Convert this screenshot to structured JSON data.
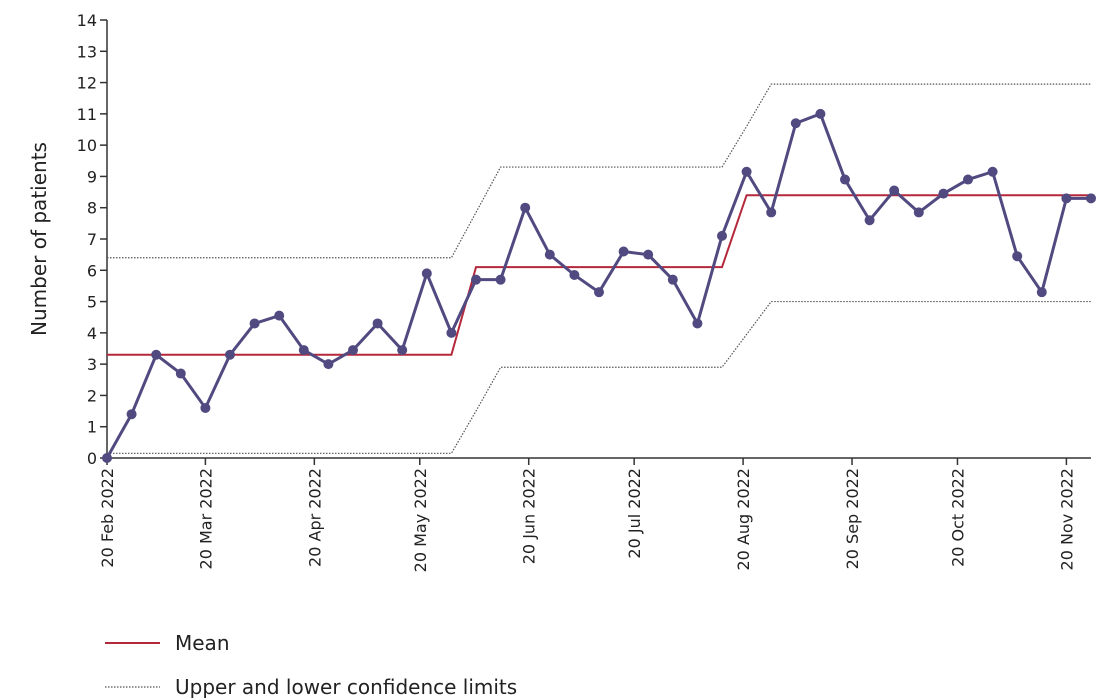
{
  "chart_data": {
    "type": "line",
    "y_label": "Number of patients",
    "x": [
      "2022-02-20",
      "2022-02-27",
      "2022-03-06",
      "2022-03-13",
      "2022-03-20",
      "2022-03-27",
      "2022-04-03",
      "2022-04-10",
      "2022-04-17",
      "2022-04-24",
      "2022-05-01",
      "2022-05-08",
      "2022-05-15",
      "2022-05-22",
      "2022-05-29",
      "2022-06-05",
      "2022-06-12",
      "2022-06-19",
      "2022-06-26",
      "2022-07-03",
      "2022-07-10",
      "2022-07-17",
      "2022-07-24",
      "2022-07-31",
      "2022-08-07",
      "2022-08-14",
      "2022-08-21",
      "2022-08-28",
      "2022-09-04",
      "2022-09-11",
      "2022-09-18",
      "2022-09-25",
      "2022-10-02",
      "2022-10-09",
      "2022-10-16",
      "2022-10-23",
      "2022-10-30",
      "2022-11-06",
      "2022-11-13",
      "2022-11-20",
      "2022-11-27"
    ],
    "series": [
      {
        "color": "#514a80",
        "values": [
          0,
          1.4,
          3.3,
          2.7,
          1.6,
          3.3,
          4.3,
          4.55,
          3.45,
          3.0,
          3.45,
          4.3,
          3.45,
          5.9,
          4.0,
          5.7,
          5.7,
          8.0,
          6.5,
          5.85,
          5.3,
          6.6,
          6.5,
          5.7,
          4.3,
          7.1,
          9.15,
          7.85,
          10.7,
          11.0,
          8.9,
          7.6,
          8.55,
          7.85,
          8.45,
          8.9,
          9.15,
          6.45,
          5.3,
          8.3,
          8.3
        ]
      },
      {
        "name": "Mean",
        "color": "#b5283b",
        "values": [
          3.3,
          3.3,
          3.3,
          3.3,
          3.3,
          3.3,
          3.3,
          3.3,
          3.3,
          3.3,
          3.3,
          3.3,
          3.3,
          3.3,
          3.3,
          6.1,
          6.1,
          6.1,
          6.1,
          6.1,
          6.1,
          6.1,
          6.1,
          6.1,
          6.1,
          6.1,
          8.4,
          8.4,
          8.4,
          8.4,
          8.4,
          8.4,
          8.4,
          8.4,
          8.4,
          8.4,
          8.4,
          8.4,
          8.4,
          8.4,
          8.4
        ]
      }
    ],
    "limits": {
      "name": "Upper and lower confidence limits",
      "color": "#555555",
      "upper": [
        6.4,
        6.4,
        6.4,
        6.4,
        6.4,
        6.4,
        6.4,
        6.4,
        6.4,
        6.4,
        6.4,
        6.4,
        6.4,
        6.4,
        6.4,
        7.85,
        9.3,
        9.3,
        9.3,
        9.3,
        9.3,
        9.3,
        9.3,
        9.3,
        9.3,
        9.3,
        10.6,
        11.95,
        11.95,
        11.95,
        11.95,
        11.95,
        11.95,
        11.95,
        11.95,
        11.95,
        11.95,
        11.95,
        11.95,
        11.95,
        11.95
      ],
      "lower": [
        0.15,
        0.15,
        0.15,
        0.15,
        0.15,
        0.15,
        0.15,
        0.15,
        0.15,
        0.15,
        0.15,
        0.15,
        0.15,
        0.15,
        0.15,
        1.5,
        2.9,
        2.9,
        2.9,
        2.9,
        2.9,
        2.9,
        2.9,
        2.9,
        2.9,
        2.9,
        3.95,
        5.0,
        5.0,
        5.0,
        5.0,
        5.0,
        5.0,
        5.0,
        5.0,
        5.0,
        5.0,
        5.0,
        5.0,
        5.0,
        5.0
      ]
    },
    "xlim": [
      "2022-02-20",
      "2022-11-27"
    ],
    "xticks": [
      {
        "value": "2022-02-20",
        "label": "20 Feb 2022"
      },
      {
        "value": "2022-03-20",
        "label": "20 Mar 2022"
      },
      {
        "value": "2022-04-20",
        "label": "20 Apr 2022"
      },
      {
        "value": "2022-05-20",
        "label": "20 May 2022"
      },
      {
        "value": "2022-06-20",
        "label": "20 Jun 2022"
      },
      {
        "value": "2022-07-20",
        "label": "20 Jul 2022"
      },
      {
        "value": "2022-08-20",
        "label": "20 Aug 2022"
      },
      {
        "value": "2022-09-20",
        "label": "20 Sep 2022"
      },
      {
        "value": "2022-10-20",
        "label": "20 Oct 2022"
      },
      {
        "value": "2022-11-20",
        "label": "20 Nov 2022"
      }
    ],
    "ylim": [
      0,
      14
    ],
    "yticks": [
      0,
      1,
      2,
      3,
      4,
      5,
      6,
      7,
      8,
      9,
      10,
      11,
      12,
      13,
      14
    ],
    "grid": false
  }
}
